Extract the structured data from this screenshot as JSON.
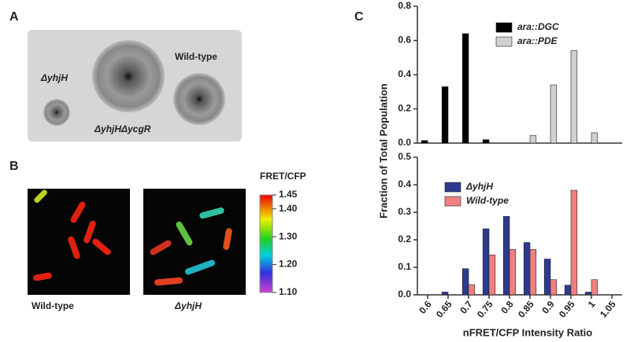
{
  "panel_labels": [
    "A",
    "B",
    "C"
  ],
  "panel_a": {
    "labels": [
      "ΔyhjH",
      "Wild-type",
      "ΔyhjHΔycgR"
    ]
  },
  "panel_b": {
    "image_labels": [
      "Wild-type",
      "ΔyhjH"
    ],
    "colorbar_title": "FRET/CFP",
    "colorbar_ticks": [
      1.45,
      {
        "value": 1.4,
        "label": "1.40"
      },
      {
        "value": 1.3,
        "label": "1.30"
      },
      {
        "value": 1.2,
        "label": "1.20"
      },
      {
        "value": 1.1,
        "label": "1.10"
      }
    ]
  },
  "y_label": "Fraction of Total Population",
  "chart_data": [
    {
      "type": "bar",
      "ylim": [
        0,
        0.8
      ],
      "yticks": [
        {
          "value": 0,
          "label": "0.0"
        },
        0.2,
        0.4,
        0.6,
        0.8
      ],
      "series": [
        {
          "name": "ara::DGC",
          "color": "#000000",
          "values": [
            0.015,
            0.33,
            0.64,
            0.02,
            0,
            0,
            0,
            0,
            0,
            0
          ]
        },
        {
          "name": "ara::PDE",
          "color": "#d0d0d0",
          "values": [
            0,
            0,
            0,
            0,
            0,
            0.045,
            0.34,
            0.54,
            0.06,
            0
          ]
        }
      ]
    },
    {
      "type": "bar",
      "ylim": [
        0,
        0.5
      ],
      "yticks": [
        {
          "value": 0,
          "label": "0.0"
        },
        0.1,
        0.2,
        0.3,
        0.4,
        0.5
      ],
      "categories": [
        "0.6",
        "0.65",
        "0.7",
        "0.75",
        "0.8",
        "0.85",
        "0.9",
        "0.95",
        "1",
        "1.05"
      ],
      "xlabel": "nFRET/CFP Intensity Ratio",
      "series": [
        {
          "name": "ΔyhjH",
          "color": "#2e3a8f",
          "values": [
            0,
            0.01,
            0.095,
            0.24,
            0.285,
            0.19,
            0.13,
            0.035,
            0.01,
            0
          ]
        },
        {
          "name": "Wild-type",
          "color": "#f08080",
          "values": [
            0,
            0,
            0.037,
            0.145,
            0.165,
            0.165,
            0.055,
            0.38,
            0.055,
            0
          ]
        }
      ]
    }
  ]
}
